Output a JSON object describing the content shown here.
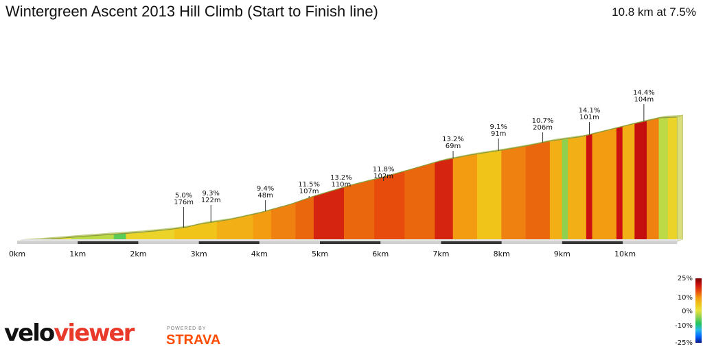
{
  "header": {
    "title": "Wintergreen Ascent 2013 Hill Climb (Start to Finish line)",
    "summary": "10.8 km at 7.5%"
  },
  "brand": {
    "logo_part1": "velo",
    "logo_part2": "viewer",
    "powered_by": "POWERED BY",
    "strava": "STRAVA"
  },
  "colors": {
    "scale": [
      "#0a1a8c",
      "#0066ff",
      "#2ab8e8",
      "#22c55e",
      "#8fd14f",
      "#e8e23a",
      "#f0c419",
      "#f39c12",
      "#e74c0c",
      "#cc1010",
      "#7a0000"
    ],
    "base_bar": "#cfcfcf",
    "km_mark": "#333333",
    "profile_edge": "#8a9a3a"
  },
  "chart_data": {
    "type": "area",
    "title": "Wintergreen Ascent 2013 Hill Climb (Start to Finish line)",
    "xlabel": "",
    "ylabel": "",
    "xlim": [
      0,
      10.9
    ],
    "x_unit": "km",
    "x_ticks": [
      "0km",
      "1km",
      "2km",
      "3km",
      "4km",
      "5km",
      "6km",
      "7km",
      "8km",
      "9km",
      "10km"
    ],
    "grid": false,
    "elevation_profile": [
      [
        0,
        0
      ],
      [
        0.5,
        5
      ],
      [
        1.0,
        11
      ],
      [
        1.5,
        16
      ],
      [
        2.0,
        21
      ],
      [
        2.5,
        28
      ],
      [
        2.8,
        34
      ],
      [
        3.0,
        41
      ],
      [
        3.5,
        52
      ],
      [
        4.0,
        68
      ],
      [
        4.5,
        88
      ],
      [
        4.9,
        108
      ],
      [
        5.5,
        134
      ],
      [
        6.0,
        152
      ],
      [
        6.5,
        172
      ],
      [
        7.0,
        193
      ],
      [
        7.5,
        207
      ],
      [
        8.0,
        218
      ],
      [
        8.4,
        228
      ],
      [
        8.8,
        240
      ],
      [
        9.3,
        250
      ],
      [
        9.7,
        264
      ],
      [
        10.2,
        282
      ],
      [
        10.6,
        295
      ],
      [
        10.9,
        297
      ]
    ],
    "gradient_segments": [
      {
        "x0": 0.0,
        "x1": 0.1,
        "g": 0
      },
      {
        "x0": 0.1,
        "x1": 0.6,
        "g": 3
      },
      {
        "x0": 0.6,
        "x1": 0.9,
        "g": 4
      },
      {
        "x0": 0.9,
        "x1": 1.6,
        "g": 3
      },
      {
        "x0": 1.6,
        "x1": 1.8,
        "g": 1
      },
      {
        "x0": 1.8,
        "x1": 2.6,
        "g": 5
      },
      {
        "x0": 2.6,
        "x1": 3.3,
        "g": 6
      },
      {
        "x0": 3.3,
        "x1": 3.9,
        "g": 7
      },
      {
        "x0": 3.9,
        "x1": 4.2,
        "g": 8
      },
      {
        "x0": 4.2,
        "x1": 4.6,
        "g": 9
      },
      {
        "x0": 4.6,
        "x1": 4.9,
        "g": 10
      },
      {
        "x0": 4.9,
        "x1": 5.4,
        "g": 13
      },
      {
        "x0": 5.4,
        "x1": 5.9,
        "g": 10
      },
      {
        "x0": 5.9,
        "x1": 6.4,
        "g": 11
      },
      {
        "x0": 6.4,
        "x1": 6.9,
        "g": 10
      },
      {
        "x0": 6.9,
        "x1": 7.2,
        "g": 13
      },
      {
        "x0": 7.2,
        "x1": 7.6,
        "g": 8
      },
      {
        "x0": 7.6,
        "x1": 8.0,
        "g": 6
      },
      {
        "x0": 8.0,
        "x1": 8.4,
        "g": 9
      },
      {
        "x0": 8.4,
        "x1": 8.8,
        "g": 10
      },
      {
        "x0": 8.8,
        "x1": 9.0,
        "g": 7
      },
      {
        "x0": 9.0,
        "x1": 9.1,
        "g": 2
      },
      {
        "x0": 9.1,
        "x1": 9.4,
        "g": 7
      },
      {
        "x0": 9.4,
        "x1": 9.5,
        "g": 14
      },
      {
        "x0": 9.5,
        "x1": 9.9,
        "g": 8
      },
      {
        "x0": 9.9,
        "x1": 10.0,
        "g": 14
      },
      {
        "x0": 10.0,
        "x1": 10.2,
        "g": 7
      },
      {
        "x0": 10.2,
        "x1": 10.4,
        "g": 15
      },
      {
        "x0": 10.4,
        "x1": 10.6,
        "g": 9
      },
      {
        "x0": 10.6,
        "x1": 10.75,
        "g": 3
      },
      {
        "x0": 10.75,
        "x1": 10.9,
        "g": 5
      }
    ],
    "annotations": [
      {
        "x": 2.75,
        "pct": "5.0%",
        "len": "176m"
      },
      {
        "x": 3.2,
        "pct": "9.3%",
        "len": "122m"
      },
      {
        "x": 4.1,
        "pct": "9.4%",
        "len": "48m"
      },
      {
        "x": 4.82,
        "pct": "11.5%",
        "len": "107m"
      },
      {
        "x": 5.35,
        "pct": "13.2%",
        "len": "110m"
      },
      {
        "x": 6.05,
        "pct": "11.8%",
        "len": "102m"
      },
      {
        "x": 7.2,
        "pct": "13.2%",
        "len": "69m"
      },
      {
        "x": 7.95,
        "pct": "9.1%",
        "len": "91m"
      },
      {
        "x": 8.68,
        "pct": "10.7%",
        "len": "206m"
      },
      {
        "x": 9.45,
        "pct": "14.1%",
        "len": "101m"
      },
      {
        "x": 10.35,
        "pct": "14.4%",
        "len": "104m"
      }
    ],
    "legend": {
      "placement": "bottom-right",
      "labels": [
        "25%",
        "10%",
        "0%",
        "-10%",
        "-25%"
      ],
      "values": [
        25,
        10,
        0,
        -10,
        -25
      ]
    }
  }
}
